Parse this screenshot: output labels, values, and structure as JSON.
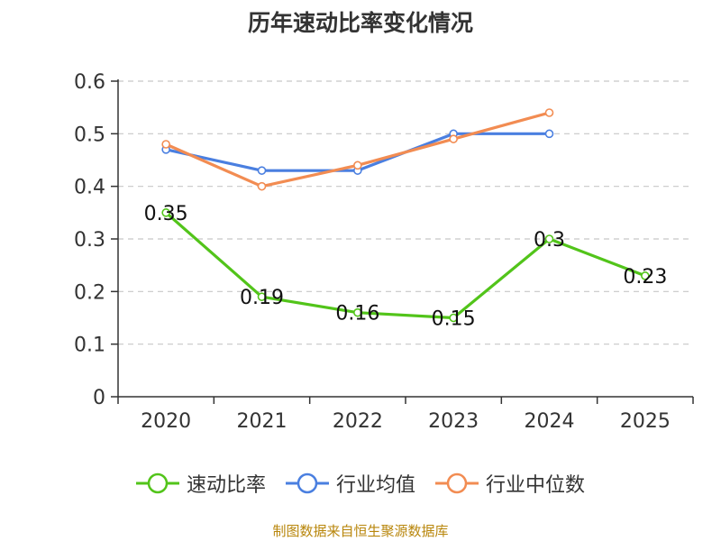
{
  "chart_data": {
    "type": "line",
    "title": "历年速动比率变化情况",
    "categories": [
      "2020",
      "2021",
      "2022",
      "2023",
      "2024",
      "2025"
    ],
    "series": [
      {
        "name": "速动比率",
        "color": "#52c41a",
        "values": [
          0.35,
          0.19,
          0.16,
          0.15,
          0.3,
          0.23
        ],
        "labels": [
          "0.35",
          "0.19",
          "0.16",
          "0.15",
          "0.3",
          "0.23"
        ]
      },
      {
        "name": "行业均值",
        "color": "#4a7fe0",
        "values": [
          0.47,
          0.43,
          0.43,
          0.5,
          0.5,
          null
        ]
      },
      {
        "name": "行业中位数",
        "color": "#f28c52",
        "values": [
          0.48,
          0.4,
          0.44,
          0.49,
          0.54,
          null
        ]
      }
    ],
    "ylim": [
      0,
      0.6
    ],
    "yticks": [
      0,
      0.1,
      0.2,
      0.3,
      0.4,
      0.5,
      0.6
    ],
    "ytick_labels": [
      "0",
      "0.1",
      "0.2",
      "0.3",
      "0.4",
      "0.5",
      "0.6"
    ],
    "grid": true,
    "legend_position": "bottom"
  },
  "source": "制图数据来自恒生聚源数据库"
}
